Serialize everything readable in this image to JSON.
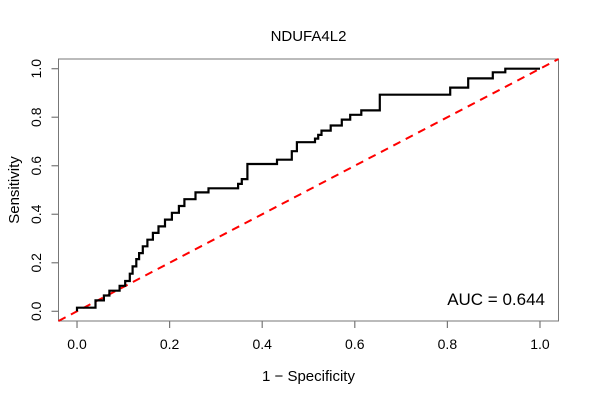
{
  "chart_data": {
    "type": "line",
    "subtype": "roc-step-curve",
    "title": "NDUFA4L2",
    "xlabel": "1 − Specificity",
    "ylabel": "Sensitivity",
    "xlim": [
      0,
      1
    ],
    "ylim": [
      0,
      1
    ],
    "grid": false,
    "legend": "none",
    "x_ticks": [
      0.0,
      0.2,
      0.4,
      0.6,
      0.8,
      1.0
    ],
    "y_ticks": [
      0.0,
      0.2,
      0.4,
      0.6,
      0.8,
      1.0
    ],
    "x_tick_labels": [
      "0.0",
      "0.2",
      "0.4",
      "0.6",
      "0.8",
      "1.0"
    ],
    "y_tick_labels": [
      "0.0",
      "0.2",
      "0.4",
      "0.6",
      "0.8",
      "1.0"
    ],
    "colors": {
      "roc_curve": "#000000",
      "chance_line": "#ff0000",
      "box": "#777777",
      "background": "#ffffff"
    },
    "series": [
      {
        "name": "ROC curve",
        "style": "solid",
        "color": "#000000",
        "line_width": 2.2,
        "points": [
          [
            0,
            0
          ],
          [
            0,
            0.015
          ],
          [
            0.004,
            0.015
          ],
          [
            0.04,
            0.015
          ],
          [
            0.04,
            0.045
          ],
          [
            0.058,
            0.045
          ],
          [
            0.058,
            0.065
          ],
          [
            0.07,
            0.065
          ],
          [
            0.07,
            0.085
          ],
          [
            0.092,
            0.085
          ],
          [
            0.092,
            0.105
          ],
          [
            0.104,
            0.105
          ],
          [
            0.104,
            0.125
          ],
          [
            0.114,
            0.125
          ],
          [
            0.114,
            0.155
          ],
          [
            0.12,
            0.155
          ],
          [
            0.12,
            0.185
          ],
          [
            0.128,
            0.185
          ],
          [
            0.128,
            0.215
          ],
          [
            0.134,
            0.215
          ],
          [
            0.134,
            0.24
          ],
          [
            0.142,
            0.24
          ],
          [
            0.142,
            0.268
          ],
          [
            0.152,
            0.268
          ],
          [
            0.152,
            0.295
          ],
          [
            0.164,
            0.295
          ],
          [
            0.164,
            0.323
          ],
          [
            0.176,
            0.323
          ],
          [
            0.176,
            0.35
          ],
          [
            0.19,
            0.35
          ],
          [
            0.19,
            0.378
          ],
          [
            0.205,
            0.378
          ],
          [
            0.205,
            0.406
          ],
          [
            0.22,
            0.406
          ],
          [
            0.22,
            0.434
          ],
          [
            0.232,
            0.434
          ],
          [
            0.232,
            0.462
          ],
          [
            0.256,
            0.462
          ],
          [
            0.256,
            0.49
          ],
          [
            0.284,
            0.49
          ],
          [
            0.284,
            0.507
          ],
          [
            0.348,
            0.507
          ],
          [
            0.348,
            0.525
          ],
          [
            0.356,
            0.525
          ],
          [
            0.356,
            0.545
          ],
          [
            0.368,
            0.545
          ],
          [
            0.368,
            0.607
          ],
          [
            0.432,
            0.607
          ],
          [
            0.432,
            0.625
          ],
          [
            0.464,
            0.625
          ],
          [
            0.464,
            0.66
          ],
          [
            0.475,
            0.66
          ],
          [
            0.475,
            0.697
          ],
          [
            0.514,
            0.697
          ],
          [
            0.514,
            0.712
          ],
          [
            0.521,
            0.712
          ],
          [
            0.521,
            0.727
          ],
          [
            0.528,
            0.727
          ],
          [
            0.528,
            0.745
          ],
          [
            0.548,
            0.745
          ],
          [
            0.548,
            0.766
          ],
          [
            0.572,
            0.766
          ],
          [
            0.572,
            0.79
          ],
          [
            0.59,
            0.79
          ],
          [
            0.59,
            0.81
          ],
          [
            0.614,
            0.81
          ],
          [
            0.614,
            0.828
          ],
          [
            0.654,
            0.828
          ],
          [
            0.654,
            0.893
          ],
          [
            0.806,
            0.893
          ],
          [
            0.806,
            0.922
          ],
          [
            0.845,
            0.922
          ],
          [
            0.845,
            0.96
          ],
          [
            0.898,
            0.96
          ],
          [
            0.898,
            0.985
          ],
          [
            0.925,
            0.985
          ],
          [
            0.925,
            1.0
          ],
          [
            1.0,
            1.0
          ]
        ]
      },
      {
        "name": "chance diagonal",
        "style": "dashed",
        "color": "#ff0000",
        "line_width": 2,
        "points": [
          [
            -0.04,
            -0.04
          ],
          [
            1.04,
            1.04
          ]
        ]
      }
    ],
    "annotations": [
      {
        "text": "AUC = 0.644",
        "x": 0.97,
        "y": 0.04,
        "align": "right"
      }
    ]
  }
}
